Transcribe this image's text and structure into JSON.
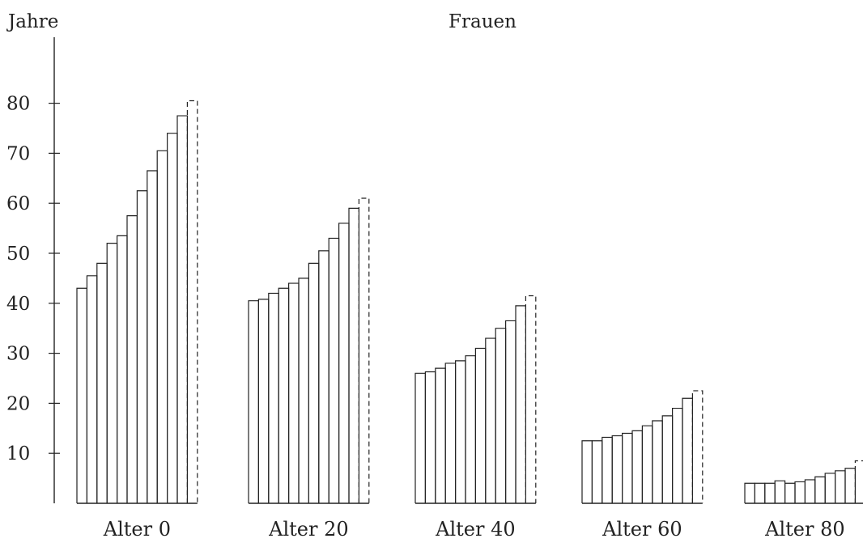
{
  "chart_data": {
    "type": "bar",
    "title": "Frauen",
    "ylabel": "Jahre",
    "xlabel": "",
    "ylim": [
      0,
      90
    ],
    "yticks": [
      10,
      20,
      30,
      40,
      50,
      60,
      70,
      80
    ],
    "grid": false,
    "dashed_last_bar": true,
    "groups": [
      {
        "label": "Alter 0",
        "values": [
          43,
          45.5,
          48,
          52,
          53.5,
          57.5,
          62.5,
          66.5,
          70.5,
          74,
          77.5,
          80.5
        ]
      },
      {
        "label": "Alter 20",
        "values": [
          40.5,
          40.8,
          42,
          43,
          44,
          45,
          48,
          50.5,
          53,
          56,
          59,
          61
        ]
      },
      {
        "label": "Alter 40",
        "values": [
          26,
          26.3,
          27,
          28,
          28.5,
          29.5,
          31,
          33,
          35,
          36.5,
          39.5,
          41.5
        ]
      },
      {
        "label": "Alter 60",
        "values": [
          12.5,
          12.5,
          13.2,
          13.5,
          14,
          14.5,
          15.5,
          16.5,
          17.5,
          19,
          21,
          22.5
        ]
      },
      {
        "label": "Alter 80",
        "values": [
          4,
          4,
          4,
          4.5,
          4,
          4.3,
          4.7,
          5.3,
          6,
          6.5,
          7,
          8.5
        ]
      }
    ]
  }
}
